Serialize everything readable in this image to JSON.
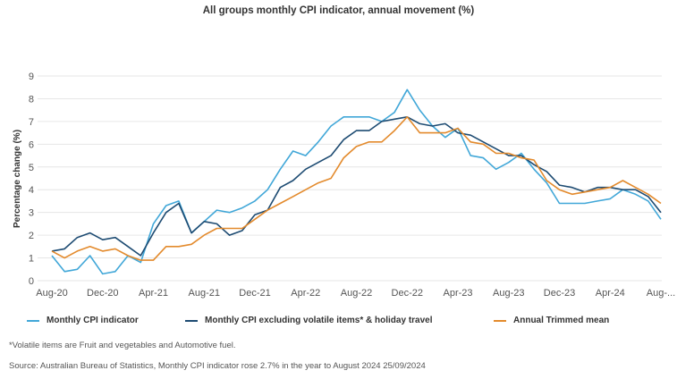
{
  "title": "All groups monthly CPI indicator, annual movement (%)",
  "footnote": "*Volatile items are Fruit and vegetables and Automotive fuel.",
  "source": "Source: Australian Bureau of Statistics, Monthly CPI indicator rose 2.7% in the year to August 2024 25/09/2024",
  "chart_data": {
    "type": "line",
    "title": "All groups monthly CPI indicator, annual movement (%)",
    "xlabel": "",
    "ylabel": "Percentage change (%)",
    "ylim": [
      0,
      9
    ],
    "yticks": [
      0,
      1,
      2,
      3,
      4,
      5,
      6,
      7,
      8,
      9
    ],
    "grid": true,
    "legend_position": "bottom",
    "x": [
      "Aug-20",
      "Sep-20",
      "Oct-20",
      "Nov-20",
      "Dec-20",
      "Jan-21",
      "Feb-21",
      "Mar-21",
      "Apr-21",
      "May-21",
      "Jun-21",
      "Jul-21",
      "Aug-21",
      "Sep-21",
      "Oct-21",
      "Nov-21",
      "Dec-21",
      "Jan-22",
      "Feb-22",
      "Mar-22",
      "Apr-22",
      "May-22",
      "Jun-22",
      "Jul-22",
      "Aug-22",
      "Sep-22",
      "Oct-22",
      "Nov-22",
      "Dec-22",
      "Jan-23",
      "Feb-23",
      "Mar-23",
      "Apr-23",
      "May-23",
      "Jun-23",
      "Jul-23",
      "Aug-23",
      "Sep-23",
      "Oct-23",
      "Nov-23",
      "Dec-23",
      "Jan-24",
      "Feb-24",
      "Mar-24",
      "Apr-24",
      "May-24",
      "Jun-24",
      "Jul-24",
      "Aug-24"
    ],
    "xtick_labels": [
      "Aug-20",
      "Dec-20",
      "Apr-21",
      "Aug-21",
      "Dec-21",
      "Apr-22",
      "Aug-22",
      "Dec-22",
      "Apr-23",
      "Aug-23",
      "Dec-23",
      "Apr-24",
      "Aug-..."
    ],
    "series": [
      {
        "name": "Monthly CPI indicator",
        "color": "#41a7d8",
        "values": [
          1.1,
          0.4,
          0.5,
          1.1,
          0.3,
          0.4,
          1.1,
          0.8,
          2.5,
          3.3,
          3.5,
          2.1,
          2.6,
          3.1,
          3.0,
          3.2,
          3.5,
          4.0,
          4.9,
          5.7,
          5.5,
          6.1,
          6.8,
          7.2,
          7.2,
          7.2,
          7.0,
          7.4,
          8.4,
          7.5,
          6.8,
          6.3,
          6.7,
          5.5,
          5.4,
          4.9,
          5.2,
          5.6,
          4.9,
          4.3,
          3.4,
          3.4,
          3.4,
          3.5,
          3.6,
          4.0,
          3.8,
          3.5,
          2.7
        ]
      },
      {
        "name": "Monthly CPI excluding volatile items* & holiday travel",
        "color": "#1d4b72",
        "values": [
          1.3,
          1.4,
          1.9,
          2.1,
          1.8,
          1.9,
          1.5,
          1.1,
          2.1,
          3.0,
          3.4,
          2.1,
          2.6,
          2.5,
          2.0,
          2.2,
          2.9,
          3.1,
          4.1,
          4.4,
          4.9,
          5.2,
          5.5,
          6.2,
          6.6,
          6.6,
          7.0,
          7.1,
          7.2,
          6.9,
          6.8,
          6.9,
          6.5,
          6.4,
          6.1,
          5.8,
          5.5,
          5.5,
          5.1,
          4.8,
          4.2,
          4.1,
          3.9,
          4.1,
          4.1,
          4.0,
          4.0,
          3.7,
          3.0
        ]
      },
      {
        "name": "Annual Trimmed mean",
        "color": "#e38a2c",
        "values": [
          1.3,
          1.0,
          1.3,
          1.5,
          1.3,
          1.4,
          1.1,
          0.9,
          0.9,
          1.5,
          1.5,
          1.6,
          2.0,
          2.3,
          2.3,
          2.3,
          2.7,
          3.1,
          3.4,
          3.7,
          4.0,
          4.3,
          4.5,
          5.4,
          5.9,
          6.1,
          6.1,
          6.6,
          7.2,
          6.5,
          6.5,
          6.5,
          6.7,
          6.1,
          6.0,
          5.6,
          5.6,
          5.4,
          5.3,
          4.4,
          4.0,
          3.8,
          3.9,
          4.0,
          4.1,
          4.4,
          4.1,
          3.8,
          3.4
        ]
      }
    ]
  }
}
